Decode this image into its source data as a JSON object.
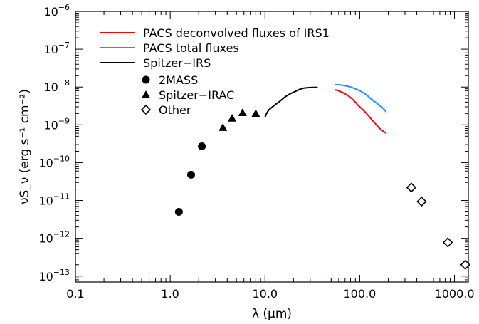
{
  "chart_data": {
    "type": "scatter",
    "xlabel": "λ (μm)",
    "ylabel": "νS_ν (erg s⁻¹ cm⁻²)",
    "x_scale": "log",
    "y_scale": "log",
    "xlim": [
      0.1,
      1400
    ],
    "ylim": [
      7e-14,
      1e-06
    ],
    "x_ticks": [
      {
        "value": 0.1,
        "label": "0.1"
      },
      {
        "value": 1,
        "label": "1.0"
      },
      {
        "value": 10,
        "label": "10.0"
      },
      {
        "value": 100,
        "label": "100.0"
      },
      {
        "value": 1000,
        "label": "1000.0"
      }
    ],
    "y_ticks": [
      {
        "value": 1e-06,
        "exp": "−6"
      },
      {
        "value": 1e-07,
        "exp": "−7"
      },
      {
        "value": 1e-08,
        "exp": "−8"
      },
      {
        "value": 1e-09,
        "exp": "−9"
      },
      {
        "value": 1e-10,
        "exp": "−10"
      },
      {
        "value": 1e-11,
        "exp": "−11"
      },
      {
        "value": 1e-12,
        "exp": "−12"
      },
      {
        "value": 1e-13,
        "exp": "−13"
      }
    ],
    "series": [
      {
        "name": "PACS deconvolved fluxes of IRS1",
        "style": "line",
        "color": "#ff0000",
        "x": [
          55,
          60,
          65,
          70,
          75,
          80,
          85,
          90,
          95,
          100,
          110,
          120,
          130,
          140,
          150,
          160,
          170,
          180,
          190
        ],
        "y": [
          8.5e-09,
          8e-09,
          7.3e-09,
          6.6e-09,
          6e-09,
          5.3e-09,
          4.6e-09,
          4e-09,
          3.4e-09,
          3e-09,
          2.4e-09,
          1.9e-09,
          1.5e-09,
          1.2e-09,
          1e-09,
          8.3e-10,
          7.3e-10,
          6.6e-10,
          6e-10
        ]
      },
      {
        "name": "PACS total fluxes",
        "style": "line",
        "color": "#1e90ff",
        "x": [
          55,
          60,
          65,
          70,
          75,
          80,
          85,
          90,
          95,
          100,
          110,
          120,
          130,
          140,
          150,
          160,
          170,
          180,
          190
        ],
        "y": [
          1.15e-08,
          1.15e-08,
          1.12e-08,
          1.08e-08,
          1.05e-08,
          1e-08,
          9.5e-09,
          9e-09,
          8.5e-09,
          8e-09,
          7e-09,
          6e-09,
          5e-09,
          4.3e-09,
          3.8e-09,
          3.3e-09,
          3e-09,
          2.6e-09,
          2.2e-09
        ]
      },
      {
        "name": "Spitzer−IRS",
        "style": "line",
        "color": "#000000",
        "x": [
          10,
          10.5,
          11,
          12,
          13,
          14,
          15,
          16,
          17,
          18,
          19,
          20,
          21,
          22,
          23,
          24,
          25,
          26,
          28,
          30,
          32,
          34,
          36
        ],
        "y": [
          1.6e-09,
          2.1e-09,
          2.5e-09,
          3e-09,
          3.5e-09,
          4e-09,
          4.6e-09,
          5.3e-09,
          5.9e-09,
          6.4e-09,
          6.9e-09,
          7.3e-09,
          7.7e-09,
          8.2e-09,
          8.6e-09,
          8.9e-09,
          9.2e-09,
          9.4e-09,
          9.6e-09,
          9.7e-09,
          9.8e-09,
          9.8e-09,
          9.9e-09
        ]
      },
      {
        "name": "2MASS",
        "style": "marker",
        "marker": "circle",
        "x": [
          1.235,
          1.662,
          2.159
        ],
        "y": [
          5e-12,
          4.8e-11,
          2.7e-10
        ]
      },
      {
        "name": "Spitzer−IRAC",
        "style": "marker",
        "marker": "triangle",
        "x": [
          3.6,
          4.5,
          5.8,
          8.0
        ],
        "y": [
          8.5e-10,
          1.5e-09,
          2.1e-09,
          2e-09
        ]
      },
      {
        "name": "Other",
        "style": "marker",
        "marker": "diamond",
        "x": [
          350,
          450,
          850,
          1300
        ],
        "y": [
          2.2e-11,
          9.4e-12,
          7.8e-13,
          2e-13
        ]
      }
    ],
    "legend": [
      {
        "label": "PACS deconvolved fluxes of IRS1",
        "kind": "line",
        "color": "#ff0000"
      },
      {
        "label": "PACS total fluxes",
        "kind": "line",
        "color": "#1e90ff"
      },
      {
        "label": "Spitzer−IRS",
        "kind": "line",
        "color": "#000000"
      },
      {
        "label": "2MASS",
        "kind": "circle",
        "color": "#000000"
      },
      {
        "label": "Spitzer−IRAC",
        "kind": "triangle",
        "color": "#000000"
      },
      {
        "label": "Other",
        "kind": "diamond",
        "color": "#000000"
      }
    ],
    "legend_position": "top-left",
    "grid": false
  }
}
